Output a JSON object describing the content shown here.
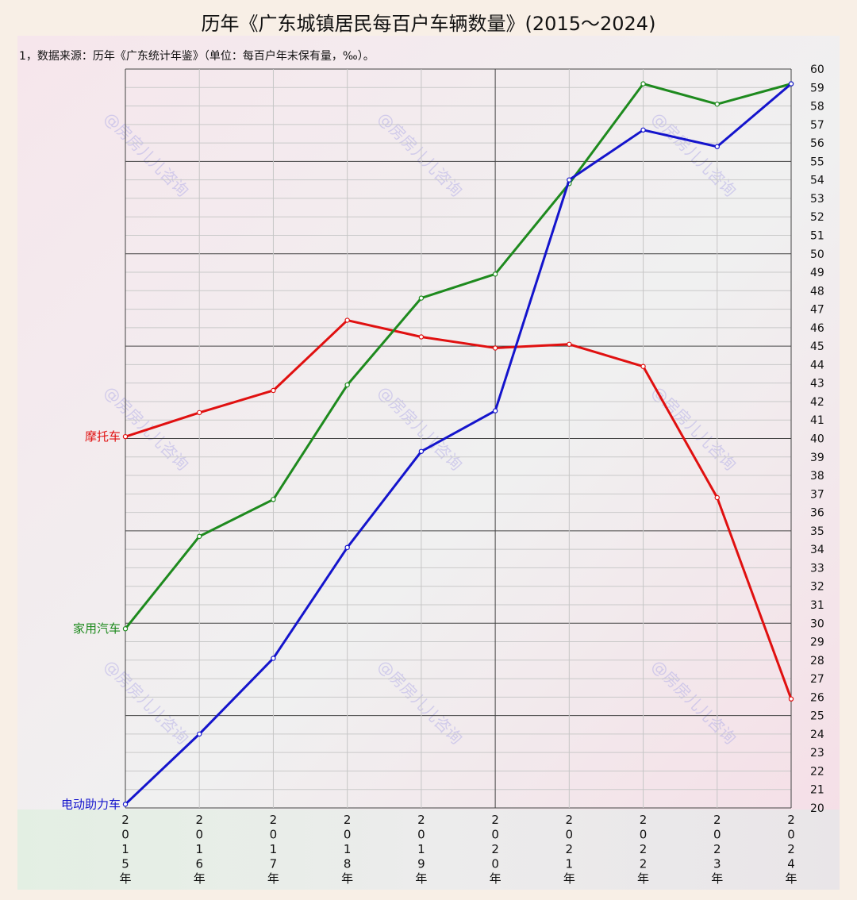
{
  "title": "历年《广东城镇居民每百户车辆数量》(2015～2024)",
  "note": "1，数据来源：历年《广东统计年鉴》（单位：每百户年末保有量，‰）。",
  "watermark": "@房房儿儿咨询",
  "chart_data": {
    "type": "line",
    "title": "历年《广东城镇居民每百户车辆数量》(2015～2024)",
    "x": [
      "2015年",
      "2016年",
      "2017年",
      "2018年",
      "2019年",
      "2020年",
      "2021年",
      "2022年",
      "2023年",
      "2024年"
    ],
    "ylim": [
      20,
      60
    ],
    "ytick_step": 1,
    "y_axis_side": "right",
    "grid": true,
    "series": [
      {
        "name": "摩托车",
        "color": "#e01010",
        "values": [
          40.1,
          41.4,
          42.6,
          46.4,
          45.5,
          44.9,
          45.1,
          43.9,
          36.8,
          25.9
        ]
      },
      {
        "name": "家用汽车",
        "color": "#1e8a1e",
        "values": [
          29.7,
          34.7,
          36.7,
          42.9,
          47.6,
          48.9,
          53.8,
          59.2,
          58.1,
          59.2
        ]
      },
      {
        "name": "电动助力车",
        "color": "#1414cc",
        "values": [
          20.2,
          24.0,
          28.1,
          34.1,
          39.3,
          41.5,
          54.0,
          56.7,
          55.8,
          59.2
        ]
      }
    ]
  }
}
